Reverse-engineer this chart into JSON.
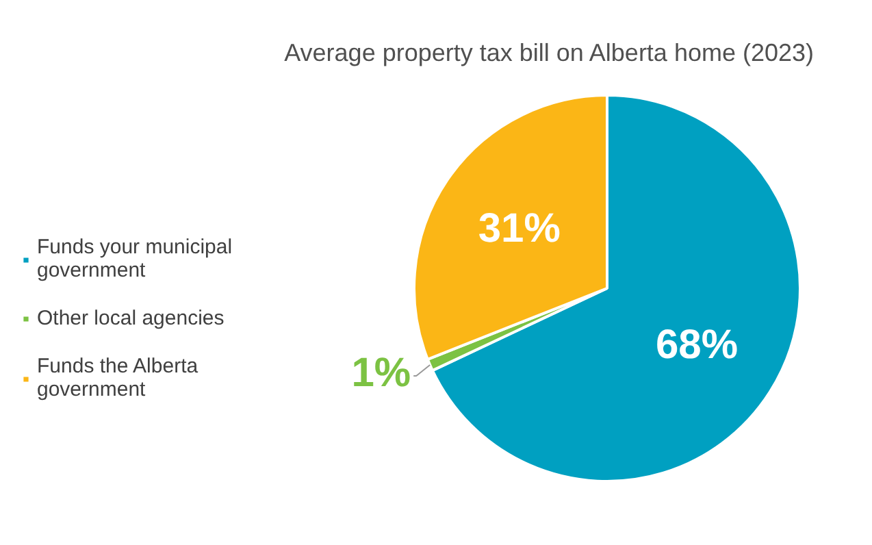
{
  "chart_data": {
    "type": "pie",
    "title": "Average property tax bill on Alberta home (2023)",
    "categories": [
      "Funds your municipal government",
      "Other local agencies",
      "Funds the Alberta government"
    ],
    "values": [
      68,
      1,
      31
    ],
    "colors": [
      "#00a0c1",
      "#7cc243",
      "#fbb616"
    ],
    "value_labels": [
      "68%",
      "1%",
      "31%"
    ],
    "legend": "left"
  }
}
